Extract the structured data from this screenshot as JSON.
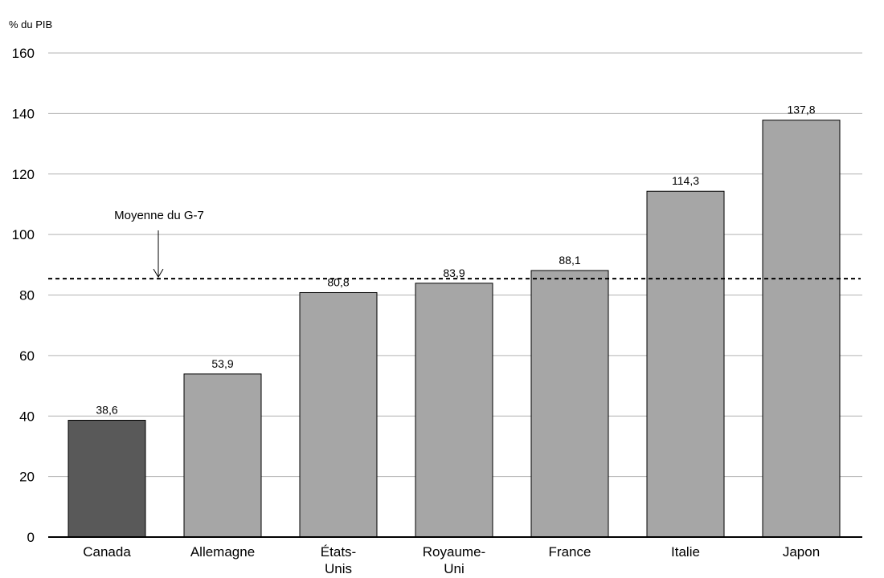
{
  "chart_data": {
    "type": "bar",
    "y_unit_label": "% du PIB",
    "ylim": [
      0,
      160
    ],
    "yticks": [
      0,
      20,
      40,
      60,
      80,
      100,
      120,
      140,
      160
    ],
    "grid": true,
    "categories": [
      "Canada",
      "Allemagne",
      "États-Unis",
      "Royaume-Uni",
      "France",
      "Italie",
      "Japon"
    ],
    "category_label_lines": [
      [
        "Canada"
      ],
      [
        "Allemagne"
      ],
      [
        "États-",
        "Unis"
      ],
      [
        "Royaume-",
        "Uni"
      ],
      [
        "France"
      ],
      [
        "Italie"
      ],
      [
        "Japon"
      ]
    ],
    "values": [
      38.6,
      53.9,
      80.8,
      83.9,
      88.1,
      114.3,
      137.8
    ],
    "value_labels": [
      "38,6",
      "53,9",
      "80,8",
      "83,9",
      "88,1",
      "114,3",
      "137,8"
    ],
    "highlight_category": "Canada",
    "colors": {
      "highlight": "#595959",
      "bar": "#a6a6a6",
      "outline": "#000000",
      "grid": "#b3b3b3"
    },
    "reference_line": {
      "label": "Moyenne du G-7",
      "value": 85.4,
      "style": "dashed"
    }
  }
}
